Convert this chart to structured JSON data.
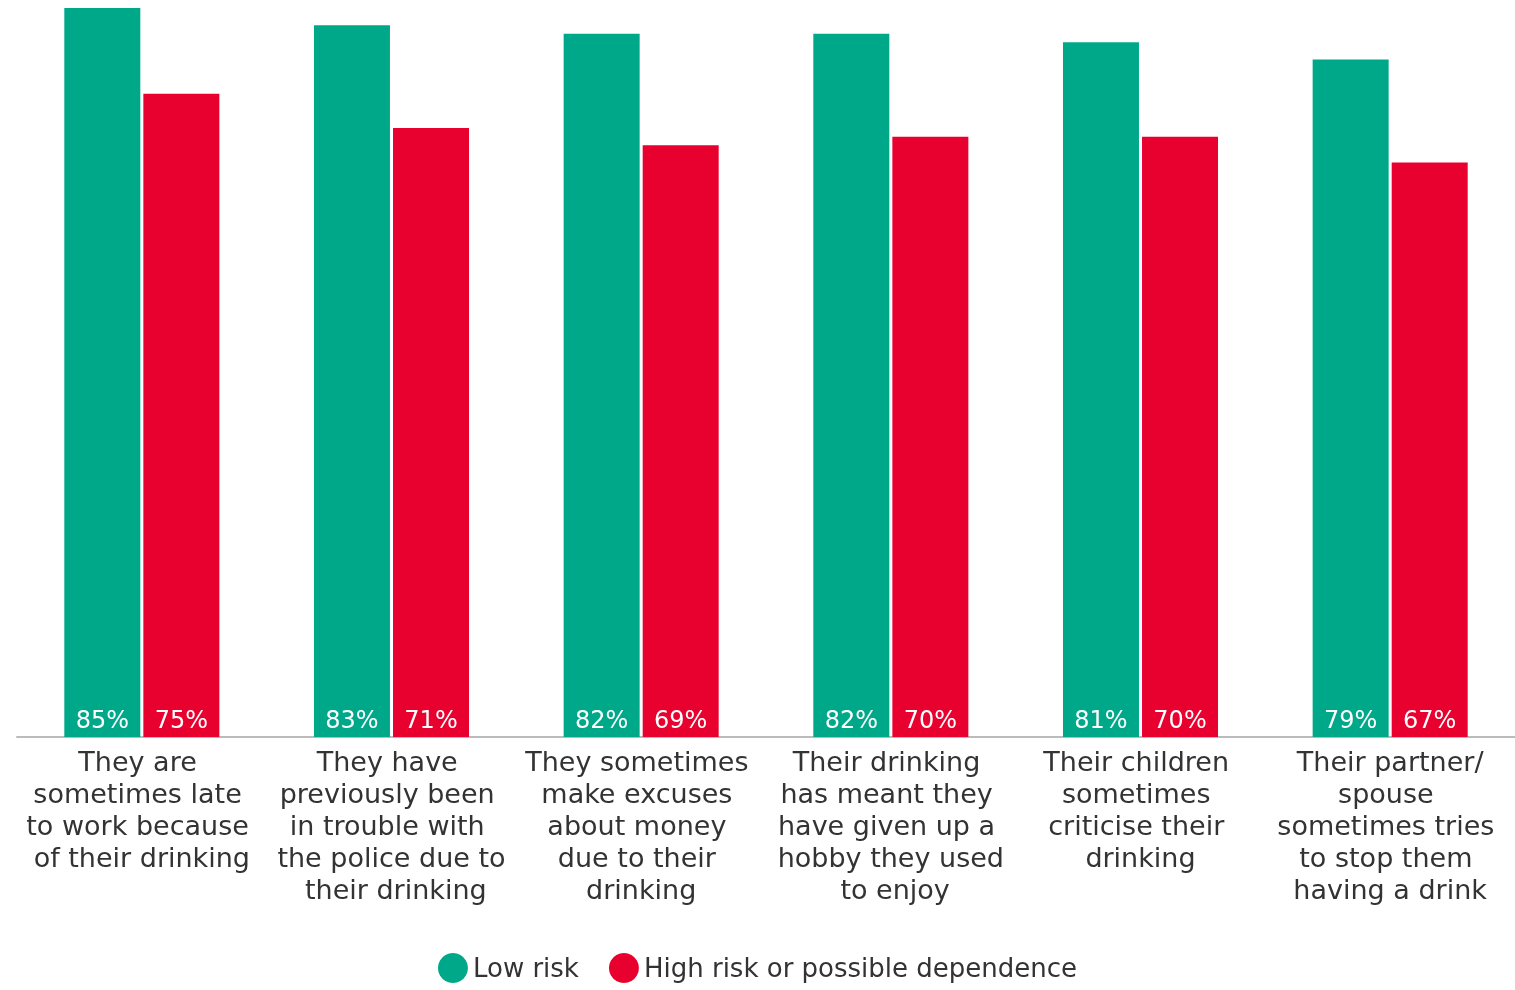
{
  "chart_data": {
    "type": "bar",
    "categories": [
      "They are sometimes late to work because of their drinking",
      "They have previously been in trouble with the police due to their drinking",
      "They sometimes make excuses about money due to their drinking",
      "Their drinking has meant they have given up a hobby they used to enjoy",
      "Their children sometimes criticise their drinking",
      "Their partner/spouse sometimes tries to stop them having a drink"
    ],
    "series": [
      {
        "name": "Low risk",
        "color": "#00a88a",
        "values": [
          85,
          83,
          82,
          82,
          81,
          79
        ],
        "value_labels": [
          "85%",
          "83%",
          "82%",
          "82%",
          "81%",
          "79%"
        ]
      },
      {
        "name": "High risk or possible dependence",
        "color": "#e8002f",
        "values": [
          75,
          71,
          69,
          70,
          70,
          67
        ],
        "value_labels": [
          "75%",
          "71%",
          "69%",
          "70%",
          "70%",
          "67%"
        ]
      }
    ],
    "legend": "bottom",
    "grid": false
  }
}
